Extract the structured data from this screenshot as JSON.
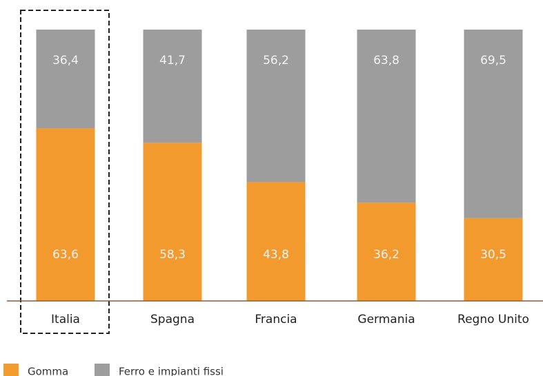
{
  "chart_data": {
    "type": "stacked_bar",
    "categories": [
      "Italia",
      "Spagna",
      "Francia",
      "Germania",
      "Regno Unito"
    ],
    "series": [
      {
        "name": "Gomma",
        "color": "#f39a2e",
        "values": [
          63.6,
          58.3,
          43.8,
          36.2,
          30.5
        ],
        "value_labels": [
          "63,6",
          "58,3",
          "43,8",
          "36,2",
          "30,5"
        ]
      },
      {
        "name": "Ferro e impianti fissi",
        "color": "#9d9d9d",
        "values": [
          36.4,
          41.7,
          56.2,
          63.8,
          69.5
        ],
        "value_labels": [
          "36,4",
          "41,7",
          "56,2",
          "63,8",
          "69,5"
        ]
      }
    ],
    "highlight": "Italia"
  }
}
